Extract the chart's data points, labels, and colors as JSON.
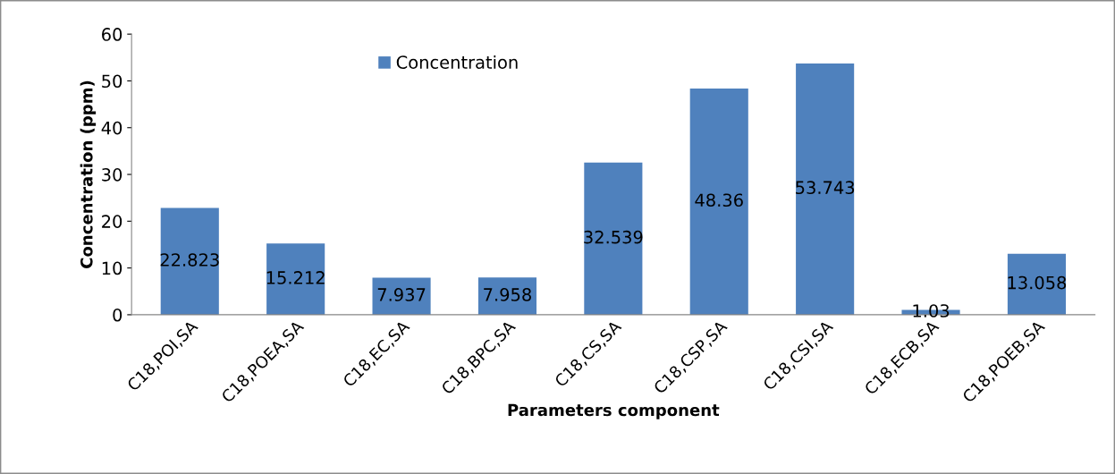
{
  "chart_data": {
    "type": "bar",
    "xlabel": "Parameters component",
    "ylabel": "Concentration (ppm)",
    "categories": [
      "C18,POI,SA",
      "C18,POEA,SA",
      "C18,EC,SA",
      "C18,BPC,SA",
      "C18,CS,SA",
      "C18,CSP,SA",
      "C18,CSI,SA",
      "C18,ECB,SA",
      "C18,POEB,SA"
    ],
    "series": [
      {
        "name": "Concentration",
        "color": "#4f81bd",
        "values": [
          22.823,
          15.212,
          7.937,
          7.958,
          32.539,
          48.36,
          53.743,
          1.03,
          13.058
        ]
      }
    ],
    "ylim": [
      0,
      60
    ],
    "yticks": [
      0,
      10,
      20,
      30,
      40,
      50,
      60
    ],
    "grid": false,
    "legend": "top",
    "data_labels": true
  }
}
